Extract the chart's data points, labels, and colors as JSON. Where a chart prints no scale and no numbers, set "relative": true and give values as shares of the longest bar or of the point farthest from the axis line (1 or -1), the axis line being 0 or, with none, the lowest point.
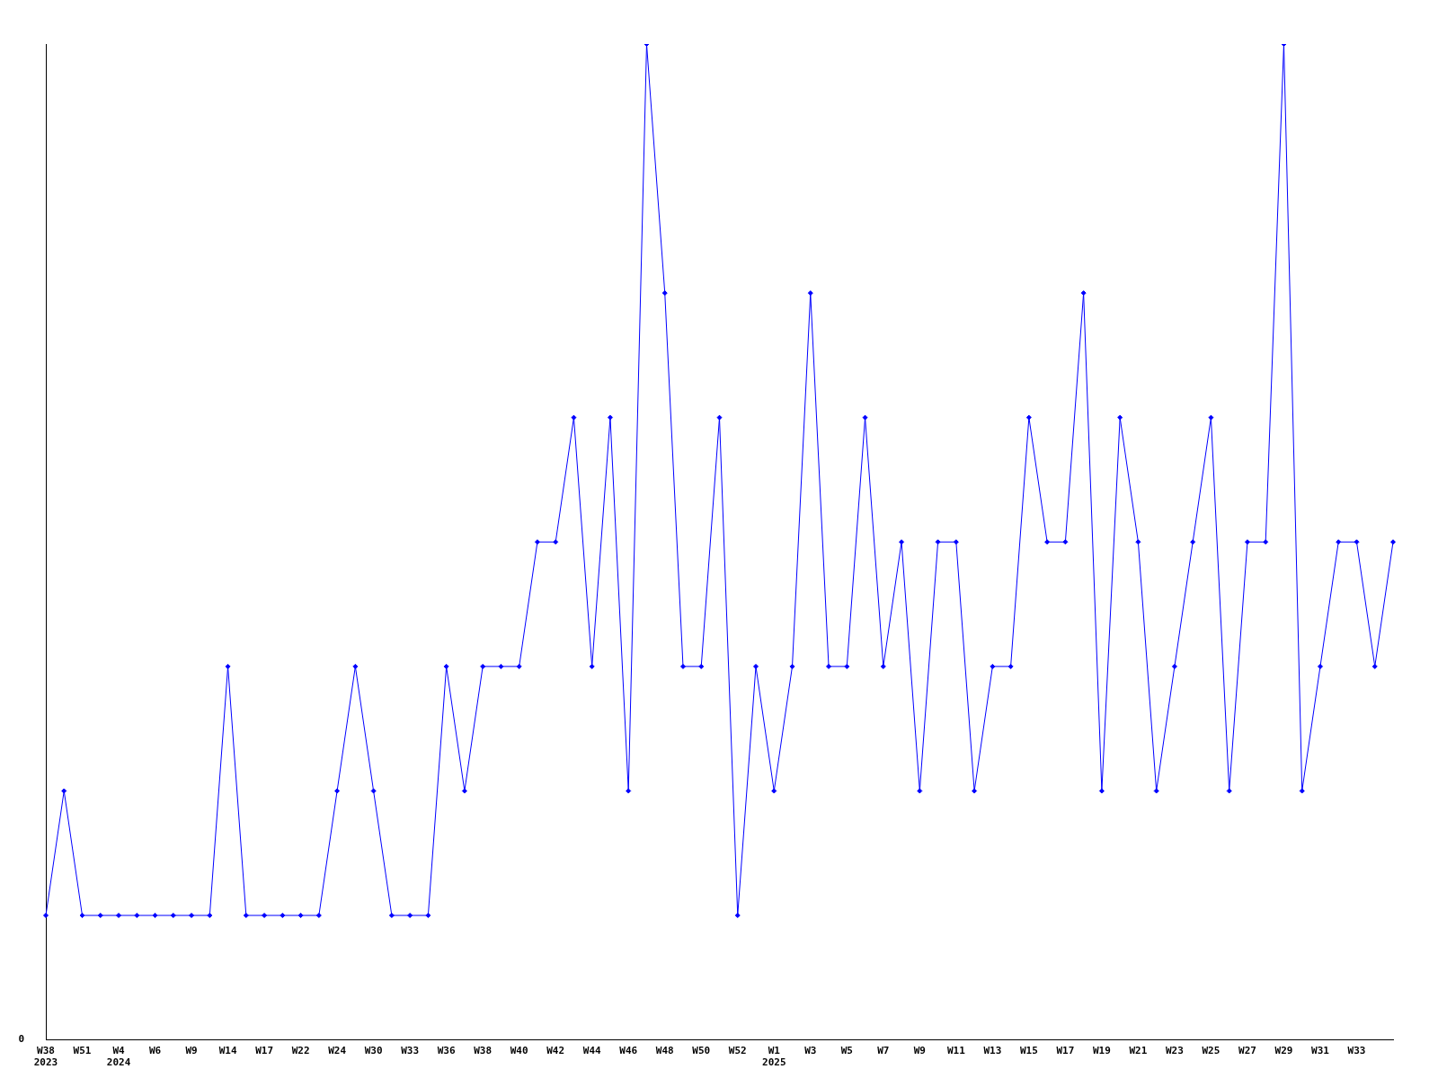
{
  "chart_data": {
    "type": "line",
    "relative": true,
    "color": "#0000ff",
    "marker": "diamond",
    "grid": false,
    "legend": false,
    "annotations": [
      "0"
    ],
    "categories": [
      "W38\n2023",
      null,
      "W51",
      null,
      "W4\n2024",
      null,
      "W6",
      null,
      "W9",
      null,
      "W14",
      null,
      "W17",
      null,
      "W22",
      null,
      "W24",
      null,
      "W30",
      null,
      "W33",
      null,
      "W36",
      null,
      "W38",
      null,
      "W40",
      null,
      "W42",
      null,
      "W44",
      null,
      "W46",
      null,
      "W48",
      null,
      "W50",
      null,
      "W52",
      null,
      "W1\n2025",
      null,
      "W3",
      null,
      "W5",
      null,
      "W7",
      null,
      "W9",
      null,
      "W11",
      null,
      "W13",
      null,
      "W15",
      null,
      "W17",
      null,
      "W19",
      null,
      "W21",
      null,
      "W23",
      null,
      "W25",
      null,
      "W27",
      null,
      "W29",
      null,
      "W31",
      null,
      "W33",
      null,
      null
    ],
    "values": [
      0.125,
      0.25,
      0.125,
      0.125,
      0.125,
      0.125,
      0.125,
      0.125,
      0.125,
      0.125,
      0.375,
      0.125,
      0.125,
      0.125,
      0.125,
      0.125,
      0.25,
      0.375,
      0.25,
      0.125,
      0.125,
      0.125,
      0.375,
      0.25,
      0.375,
      0.375,
      0.375,
      0.5,
      0.5,
      0.625,
      0.375,
      0.625,
      0.25,
      1,
      0.75,
      0.375,
      0.375,
      0.625,
      0.125,
      0.375,
      0.25,
      0.375,
      0.75,
      0.375,
      0.375,
      0.625,
      0.375,
      0.5,
      0.25,
      0.5,
      0.5,
      0.25,
      0.375,
      0.375,
      0.625,
      0.5,
      0.5,
      0.75,
      0.25,
      0.625,
      0.5,
      0.25,
      0.375,
      0.5,
      0.625,
      0.25,
      0.5,
      0.5,
      1,
      0.25,
      0.375,
      0.5,
      0.5,
      0.375,
      0.5
    ]
  }
}
